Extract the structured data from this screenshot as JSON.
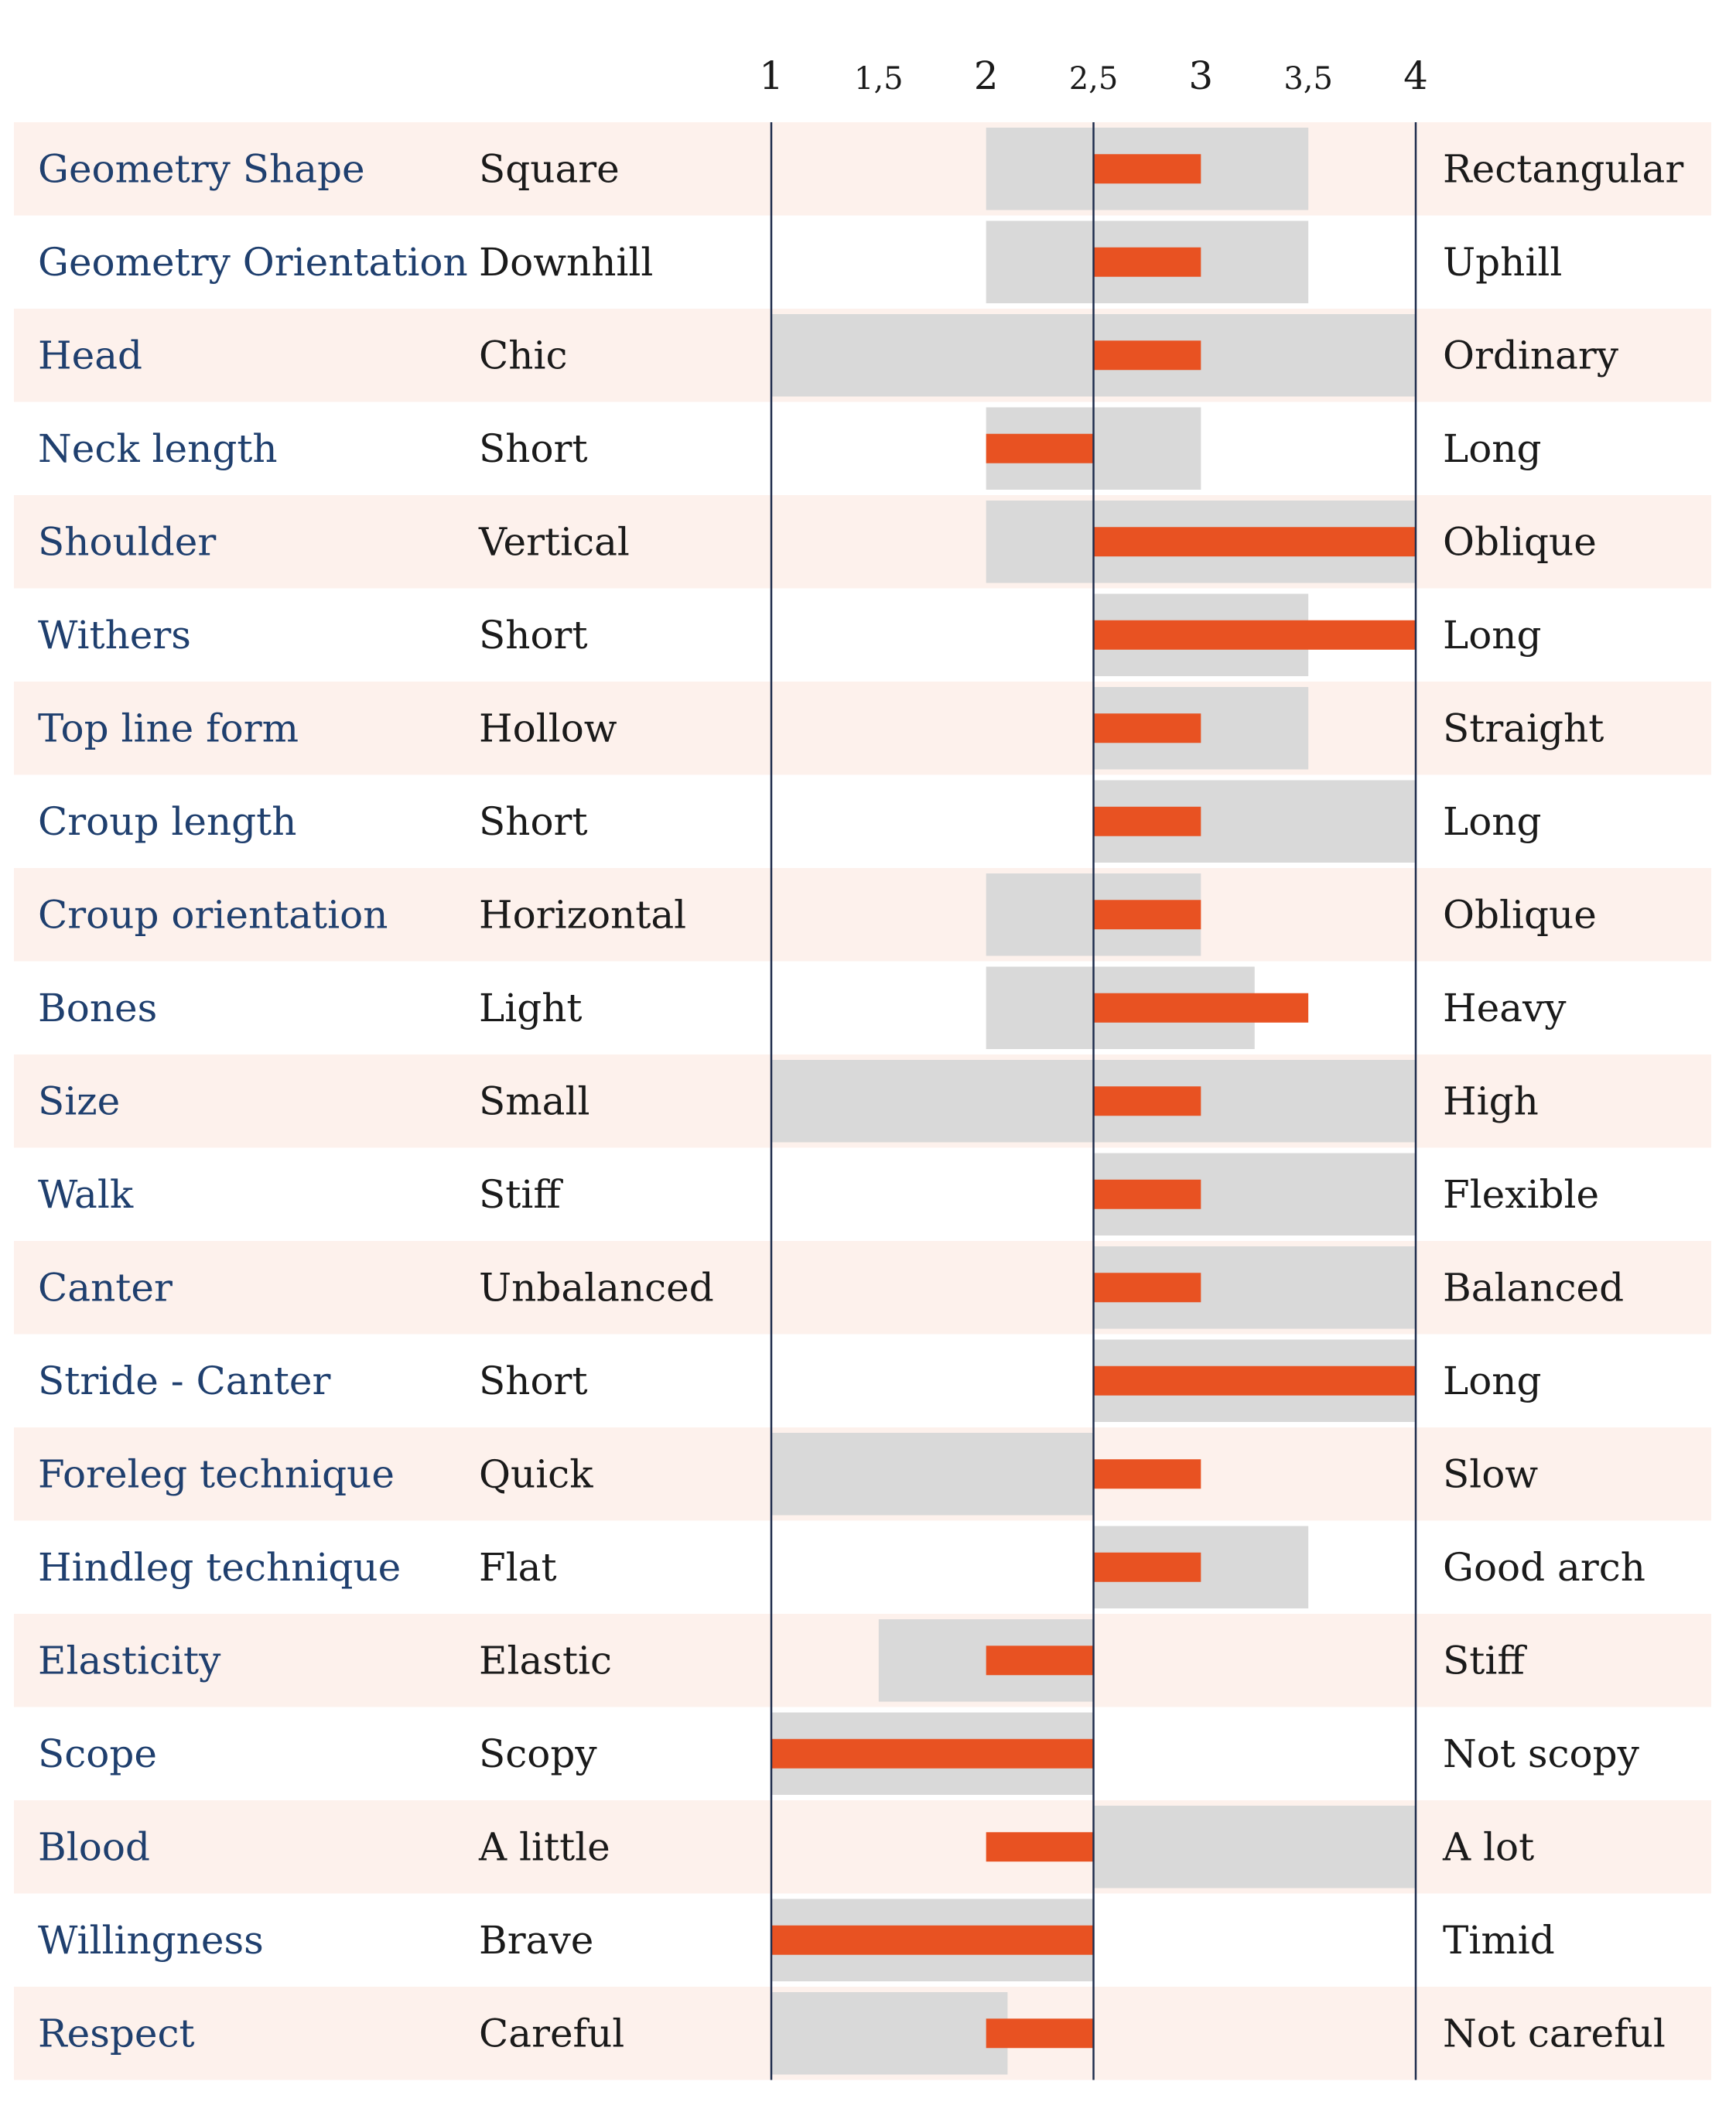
{
  "chart_data": {
    "type": "bar",
    "title": "",
    "xlabel": "",
    "ylabel": "",
    "xlim": [
      1,
      4
    ],
    "center": 2.5,
    "x_ticks": [
      "1",
      "1,5",
      "2",
      "2,5",
      "3",
      "3,5",
      "4"
    ],
    "x_tick_values": [
      1,
      1.5,
      2,
      2.5,
      3,
      3.5,
      4
    ],
    "grid": false,
    "colors": {
      "bar": "#e85222",
      "range": "#d9d9d9",
      "row_shade": "#fdf1ec",
      "trait_text": "#1f3f6e",
      "axis_line": "#1f2d4d"
    },
    "rows": [
      {
        "trait": "Geometry Shape",
        "low": "Square",
        "high": "Rectangular",
        "value": 3.0,
        "range": [
          2.0,
          3.5
        ]
      },
      {
        "trait": "Geometry Orientation",
        "low": "Downhill",
        "high": "Uphill",
        "value": 3.0,
        "range": [
          2.0,
          3.5
        ]
      },
      {
        "trait": "Head",
        "low": "Chic",
        "high": "Ordinary",
        "value": 3.0,
        "range": [
          1.0,
          4.0
        ]
      },
      {
        "trait": "Neck length",
        "low": "Short",
        "high": "Long",
        "value": 2.0,
        "range": [
          2.0,
          3.0
        ]
      },
      {
        "trait": "Shoulder",
        "low": "Vertical",
        "high": "Oblique",
        "value": 4.0,
        "range": [
          2.0,
          4.0
        ]
      },
      {
        "trait": "Withers",
        "low": "Short",
        "high": "Long",
        "value": 4.0,
        "range": [
          2.5,
          3.5
        ]
      },
      {
        "trait": "Top line form",
        "low": "Hollow",
        "high": "Straight",
        "value": 3.0,
        "range": [
          2.5,
          3.5
        ]
      },
      {
        "trait": "Croup length",
        "low": "Short",
        "high": "Long",
        "value": 3.0,
        "range": [
          2.5,
          4.0
        ]
      },
      {
        "trait": "Croup orientation",
        "low": "Horizontal",
        "high": "Oblique",
        "value": 3.0,
        "range": [
          2.0,
          3.0
        ]
      },
      {
        "trait": "Bones",
        "low": "Light",
        "high": "Heavy",
        "value": 3.5,
        "range": [
          2.0,
          3.25
        ]
      },
      {
        "trait": "Size",
        "low": "Small",
        "high": "High",
        "value": 3.0,
        "range": [
          1.0,
          4.0
        ]
      },
      {
        "trait": "Walk",
        "low": "Stiff",
        "high": "Flexible",
        "value": 3.0,
        "range": [
          2.5,
          4.0
        ]
      },
      {
        "trait": "Canter",
        "low": "Unbalanced",
        "high": "Balanced",
        "value": 3.0,
        "range": [
          2.5,
          4.0
        ]
      },
      {
        "trait": "Stride - Canter",
        "low": "Short",
        "high": "Long",
        "value": 4.0,
        "range": [
          2.5,
          4.0
        ]
      },
      {
        "trait": "Foreleg technique",
        "low": "Quick",
        "high": "Slow",
        "value": 3.0,
        "range": [
          1.0,
          2.5
        ]
      },
      {
        "trait": "Hindleg technique",
        "low": "Flat",
        "high": "Good arch",
        "value": 3.0,
        "range": [
          2.5,
          3.5
        ]
      },
      {
        "trait": "Elasticity",
        "low": "Elastic",
        "high": "Stiff",
        "value": 2.0,
        "range": [
          1.5,
          2.5
        ]
      },
      {
        "trait": "Scope",
        "low": "Scopy",
        "high": "Not scopy",
        "value": 1.0,
        "range": [
          1.0,
          2.5
        ]
      },
      {
        "trait": "Blood",
        "low": "A little",
        "high": "A lot",
        "value": 2.0,
        "range": [
          2.5,
          4.0
        ]
      },
      {
        "trait": "Willingness",
        "low": "Brave",
        "high": "Timid",
        "value": 1.0,
        "range": [
          1.0,
          2.5
        ]
      },
      {
        "trait": "Respect",
        "low": "Careful",
        "high": "Not careful",
        "value": 2.0,
        "range": [
          1.0,
          2.1
        ]
      }
    ]
  }
}
